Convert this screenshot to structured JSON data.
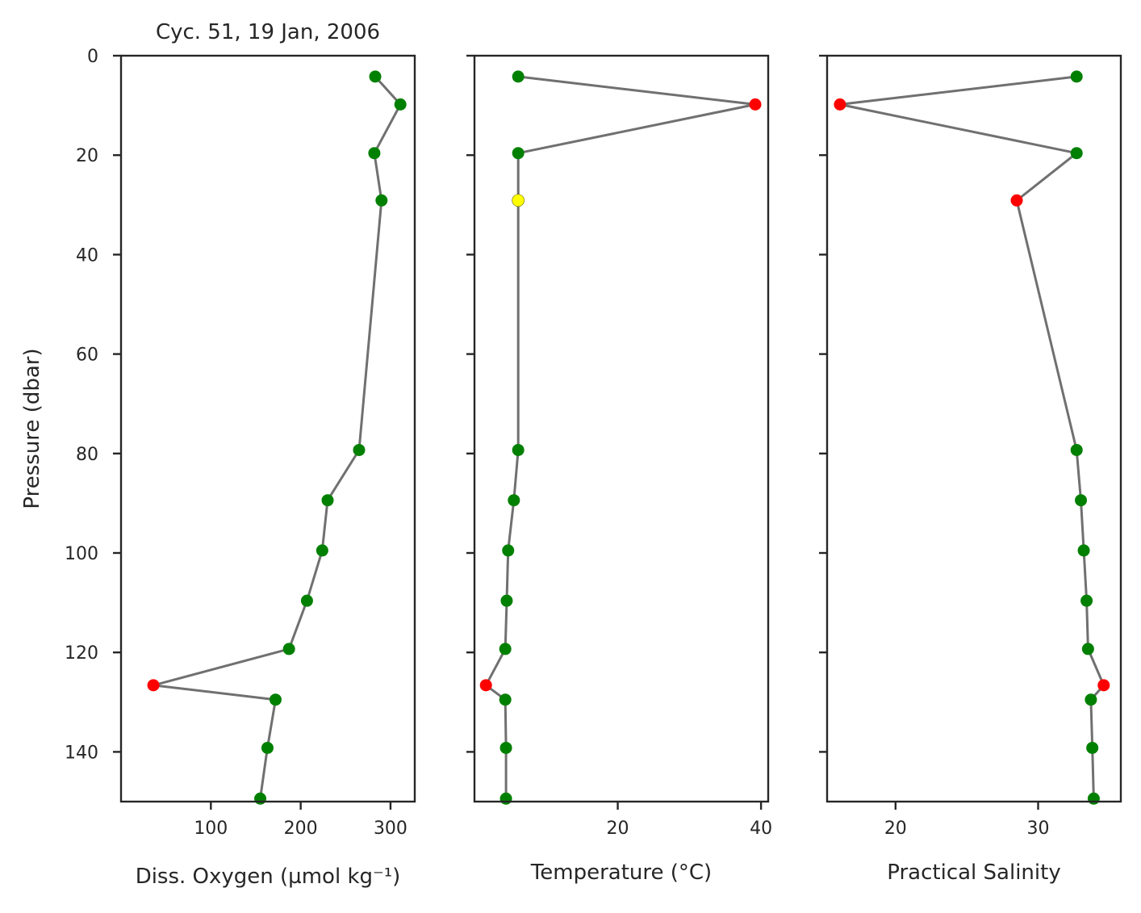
{
  "colors": {
    "good": "#008000",
    "probably_good": "#ffff00",
    "bad": "#ff0000",
    "line": "#707070"
  },
  "chart_data": [
    {
      "type": "line",
      "title": "Cyc. 51, 19 Jan, 2006",
      "xlabel": "Diss. Oxygen (µmol kg⁻¹)",
      "ylabel": "Pressure (dbar)",
      "xlim": [
        0,
        327
      ],
      "ylim": [
        150,
        0
      ],
      "xticks": [
        100,
        200,
        300
      ],
      "yticks": [
        0,
        20,
        40,
        60,
        80,
        100,
        120,
        140
      ],
      "points": [
        {
          "y": 4.2,
          "x": 283,
          "flag": "good"
        },
        {
          "y": 9.8,
          "x": 311,
          "flag": "good"
        },
        {
          "y": 19.6,
          "x": 282,
          "flag": "good"
        },
        {
          "y": 29.1,
          "x": 290,
          "flag": "good"
        },
        {
          "y": 79.3,
          "x": 265,
          "flag": "good"
        },
        {
          "y": 89.4,
          "x": 230,
          "flag": "good"
        },
        {
          "y": 99.5,
          "x": 224,
          "flag": "good"
        },
        {
          "y": 109.6,
          "x": 207,
          "flag": "good"
        },
        {
          "y": 119.3,
          "x": 187,
          "flag": "good"
        },
        {
          "y": 126.6,
          "x": 36,
          "flag": "bad"
        },
        {
          "y": 129.5,
          "x": 172,
          "flag": "good"
        },
        {
          "y": 139.2,
          "x": 163,
          "flag": "good"
        },
        {
          "y": 149.4,
          "x": 155,
          "flag": "good"
        }
      ]
    },
    {
      "type": "line",
      "title": "",
      "xlabel": "Temperature (°C)",
      "ylabel": "",
      "xlim": [
        0,
        41
      ],
      "ylim": [
        150,
        0
      ],
      "xticks": [
        20,
        40
      ],
      "yticks": [
        0,
        20,
        40,
        60,
        80,
        100,
        120,
        140
      ],
      "points": [
        {
          "y": 4.2,
          "x": 6.1,
          "flag": "good"
        },
        {
          "y": 9.8,
          "x": 39.2,
          "flag": "bad"
        },
        {
          "y": 19.6,
          "x": 6.1,
          "flag": "good"
        },
        {
          "y": 29.1,
          "x": 6.1,
          "flag": "probably_good"
        },
        {
          "y": 79.3,
          "x": 6.1,
          "flag": "good"
        },
        {
          "y": 89.4,
          "x": 5.5,
          "flag": "good"
        },
        {
          "y": 99.5,
          "x": 4.7,
          "flag": "good"
        },
        {
          "y": 109.6,
          "x": 4.5,
          "flag": "good"
        },
        {
          "y": 119.3,
          "x": 4.3,
          "flag": "good"
        },
        {
          "y": 126.6,
          "x": 1.6,
          "flag": "bad"
        },
        {
          "y": 129.5,
          "x": 4.3,
          "flag": "good"
        },
        {
          "y": 139.2,
          "x": 4.4,
          "flag": "good"
        },
        {
          "y": 149.4,
          "x": 4.4,
          "flag": "good"
        }
      ]
    },
    {
      "type": "line",
      "title": "",
      "xlabel": "Practical Salinity",
      "ylabel": "",
      "xlim": [
        15.2,
        35.8
      ],
      "ylim": [
        150,
        0
      ],
      "xticks": [
        20,
        30
      ],
      "yticks": [
        0,
        20,
        40,
        60,
        80,
        100,
        120,
        140
      ],
      "points": [
        {
          "y": 4.2,
          "x": 32.7,
          "flag": "good"
        },
        {
          "y": 9.8,
          "x": 16.1,
          "flag": "bad"
        },
        {
          "y": 19.6,
          "x": 32.7,
          "flag": "good"
        },
        {
          "y": 29.1,
          "x": 28.5,
          "flag": "bad"
        },
        {
          "y": 79.3,
          "x": 32.7,
          "flag": "good"
        },
        {
          "y": 89.4,
          "x": 33.0,
          "flag": "good"
        },
        {
          "y": 99.5,
          "x": 33.2,
          "flag": "good"
        },
        {
          "y": 109.6,
          "x": 33.4,
          "flag": "good"
        },
        {
          "y": 119.3,
          "x": 33.5,
          "flag": "good"
        },
        {
          "y": 126.6,
          "x": 34.6,
          "flag": "bad"
        },
        {
          "y": 129.5,
          "x": 33.7,
          "flag": "good"
        },
        {
          "y": 139.2,
          "x": 33.8,
          "flag": "good"
        },
        {
          "y": 149.4,
          "x": 33.9,
          "flag": "good"
        }
      ]
    }
  ]
}
